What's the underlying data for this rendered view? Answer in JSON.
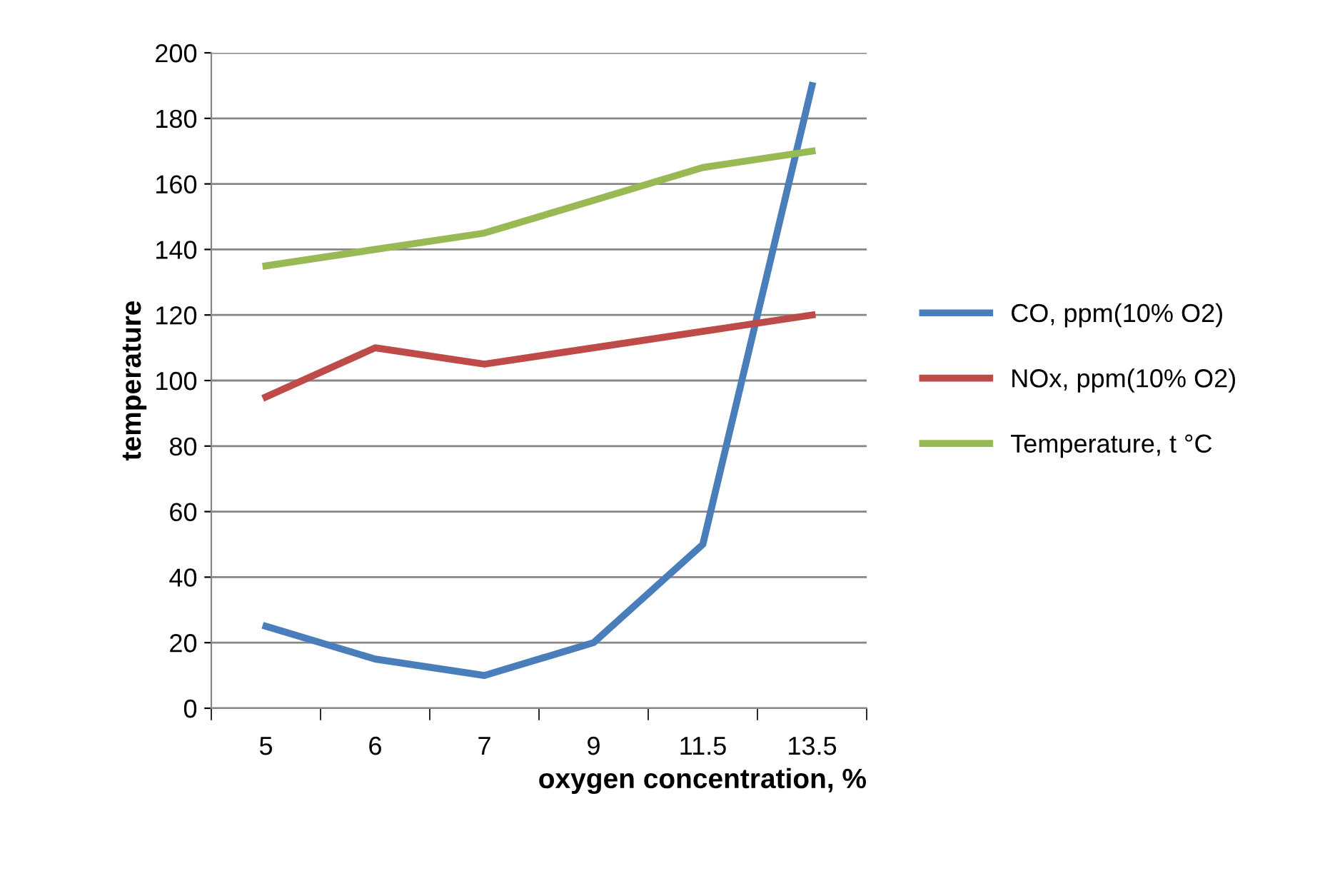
{
  "chart_data": {
    "type": "line",
    "xlabel": "oxygen concentration, %",
    "ylabel": "temperature",
    "categories": [
      "5",
      "6",
      "7",
      "9",
      "11.5",
      "13.5"
    ],
    "series": [
      {
        "name": "CO, ppm(10% O2)",
        "color": "#4a7ebb",
        "values": [
          25,
          15,
          10,
          20,
          50,
          190
        ]
      },
      {
        "name": "NOx, ppm(10% O2)",
        "color": "#be4b48",
        "values": [
          95,
          110,
          105,
          110,
          115,
          120
        ]
      },
      {
        "name": "Temperature, t °C",
        "color": "#98b954",
        "values": [
          135,
          140,
          145,
          155,
          165,
          170
        ]
      }
    ],
    "ylim": [
      0,
      200
    ],
    "yticks": [
      0,
      20,
      40,
      60,
      80,
      100,
      120,
      140,
      160,
      180,
      200
    ],
    "grid": "y",
    "legend": "right",
    "marker": "none",
    "line_style": "solid"
  }
}
